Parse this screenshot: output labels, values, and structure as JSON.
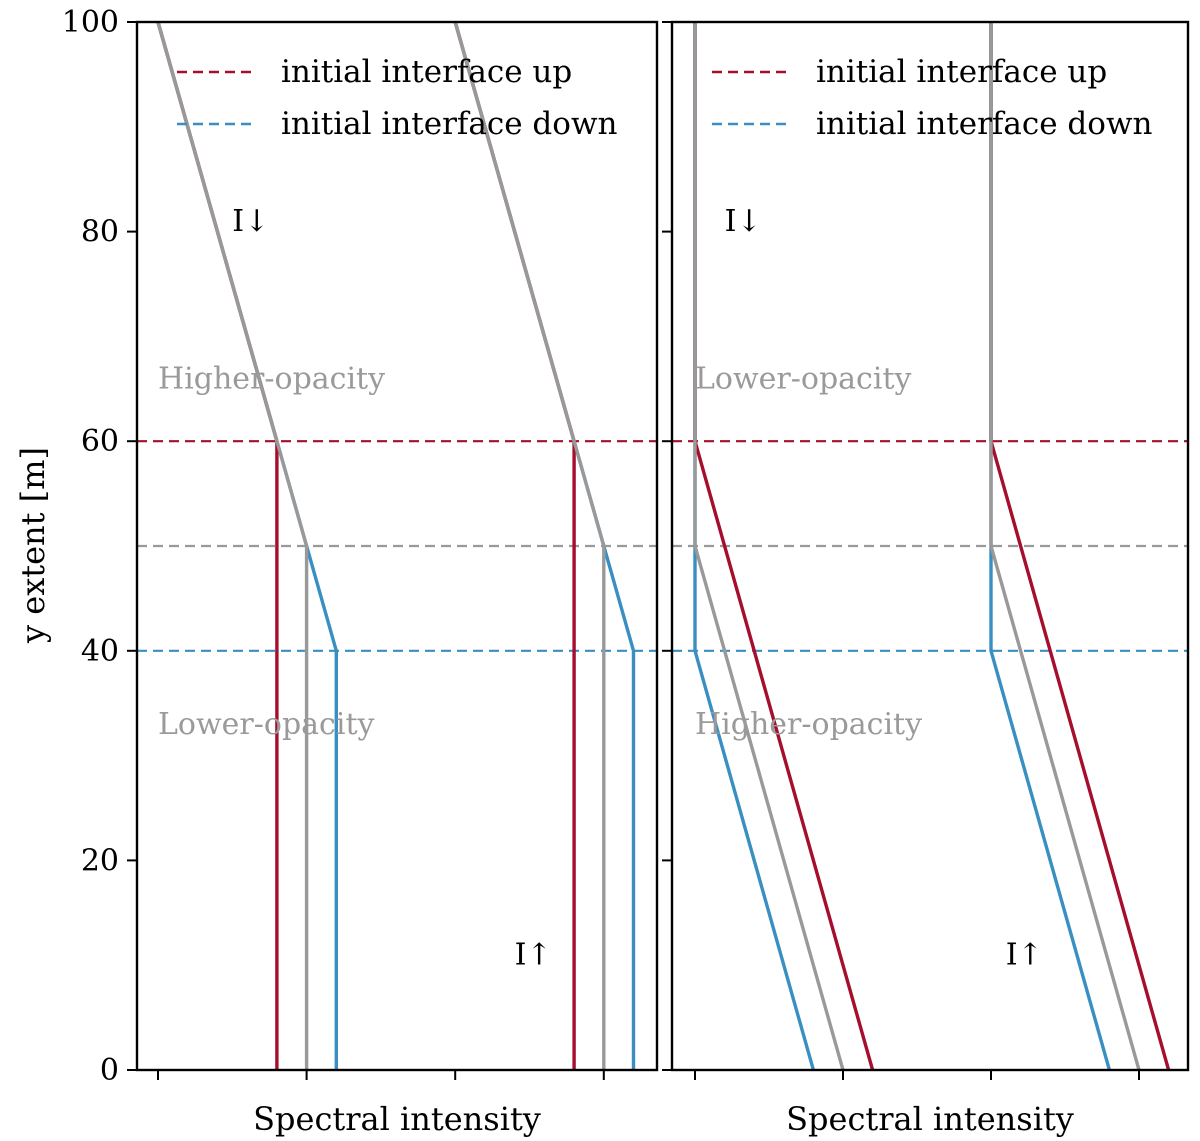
{
  "colors": {
    "up": "#a50f2d",
    "down": "#3a8fc2",
    "mid": "#999999",
    "region_text": "#9a9a9a"
  },
  "chart_data": [
    {
      "type": "line",
      "panel": "left",
      "xlabel": "Spectral intensity",
      "ylabel": "y extent [m]",
      "ylim": [
        0,
        100
      ],
      "xlim": [
        0,
        10
      ],
      "yticks": [
        0,
        20,
        40,
        60,
        80,
        100
      ],
      "xticks": [
        0,
        1,
        2,
        3
      ],
      "legend": {
        "placement": "top-right",
        "entries": [
          {
            "label": "initial interface up",
            "color_key": "up",
            "style": "dashed"
          },
          {
            "label": "initial interface down",
            "color_key": "down",
            "style": "dashed"
          }
        ]
      },
      "hlines": [
        {
          "y": 60,
          "color_key": "up",
          "style": "dashed"
        },
        {
          "y": 50,
          "color_key": "mid",
          "style": "dashed"
        },
        {
          "y": 40,
          "color_key": "down",
          "style": "dashed"
        }
      ],
      "region_labels": [
        {
          "text": "Higher-opacity",
          "x": 0,
          "y": 66
        },
        {
          "text": "Lower-opacity",
          "x": 0,
          "y": 33
        }
      ],
      "flux_labels": [
        {
          "text": "I↓",
          "x": 0.5,
          "y": 81
        },
        {
          "text": "I↑",
          "x": 2.4,
          "y": 11
        }
      ],
      "series": [
        {
          "name": "I↓ up",
          "color_key": "up",
          "x": [
            0,
            0.8,
            0.8
          ],
          "y": [
            100,
            60,
            0
          ]
        },
        {
          "name": "I↓ mid",
          "color_key": "mid",
          "x": [
            0,
            0.8,
            1.0,
            1.0
          ],
          "y": [
            100,
            60,
            50,
            0
          ]
        },
        {
          "name": "I↓ down",
          "color_key": "down",
          "x": [
            0,
            0.8,
            1.0,
            1.2,
            1.2
          ],
          "y": [
            100,
            60,
            50,
            40,
            0
          ]
        },
        {
          "name": "I↑ up",
          "color_key": "up",
          "x": [
            2,
            2.8,
            2.8
          ],
          "y": [
            100,
            60,
            0
          ]
        },
        {
          "name": "I↑ mid",
          "color_key": "mid",
          "x": [
            2,
            2.8,
            3.0,
            3.0
          ],
          "y": [
            100,
            60,
            50,
            0
          ]
        },
        {
          "name": "I↑ down",
          "color_key": "down",
          "x": [
            2,
            2.8,
            3.0,
            3.2,
            3.2
          ],
          "y": [
            100,
            60,
            50,
            40,
            0
          ]
        }
      ]
    },
    {
      "type": "line",
      "panel": "right",
      "xlabel": "Spectral intensity",
      "ylabel": "",
      "ylim": [
        0,
        100
      ],
      "xlim": [
        0,
        10
      ],
      "yticks": [
        0,
        20,
        40,
        60,
        80,
        100
      ],
      "xticks": [
        0,
        1,
        2,
        3
      ],
      "legend": {
        "placement": "top-right",
        "entries": [
          {
            "label": "initial interface up",
            "color_key": "up",
            "style": "dashed"
          },
          {
            "label": "initial interface down",
            "color_key": "down",
            "style": "dashed"
          }
        ]
      },
      "hlines": [
        {
          "y": 60,
          "color_key": "up",
          "style": "dashed"
        },
        {
          "y": 50,
          "color_key": "mid",
          "style": "dashed"
        },
        {
          "y": 40,
          "color_key": "down",
          "style": "dashed"
        }
      ],
      "region_labels": [
        {
          "text": "Lower-opacity",
          "x": 0,
          "y": 66
        },
        {
          "text": "Higher-opacity",
          "x": 0,
          "y": 33
        }
      ],
      "flux_labels": [
        {
          "text": "I↓",
          "x": 0.2,
          "y": 81
        },
        {
          "text": "I↑",
          "x": 2.1,
          "y": 11
        }
      ],
      "series": [
        {
          "name": "I↓ up",
          "color_key": "up",
          "x": [
            0,
            0,
            1.2
          ],
          "y": [
            100,
            60,
            0
          ]
        },
        {
          "name": "I↓ mid",
          "color_key": "mid",
          "x": [
            0,
            0,
            1.0
          ],
          "y": [
            100,
            50,
            0
          ]
        },
        {
          "name": "I↓ down",
          "color_key": "down",
          "x": [
            0,
            0,
            0.8
          ],
          "y": [
            100,
            40,
            0
          ]
        },
        {
          "name": "I↑ up",
          "color_key": "up",
          "x": [
            2,
            2,
            3.2
          ],
          "y": [
            100,
            60,
            0
          ]
        },
        {
          "name": "I↑ mid",
          "color_key": "mid",
          "x": [
            2,
            2,
            3.0
          ],
          "y": [
            100,
            50,
            0
          ]
        },
        {
          "name": "I↑ down",
          "color_key": "down",
          "x": [
            2,
            2,
            2.8
          ],
          "y": [
            100,
            40,
            0
          ]
        }
      ]
    }
  ]
}
